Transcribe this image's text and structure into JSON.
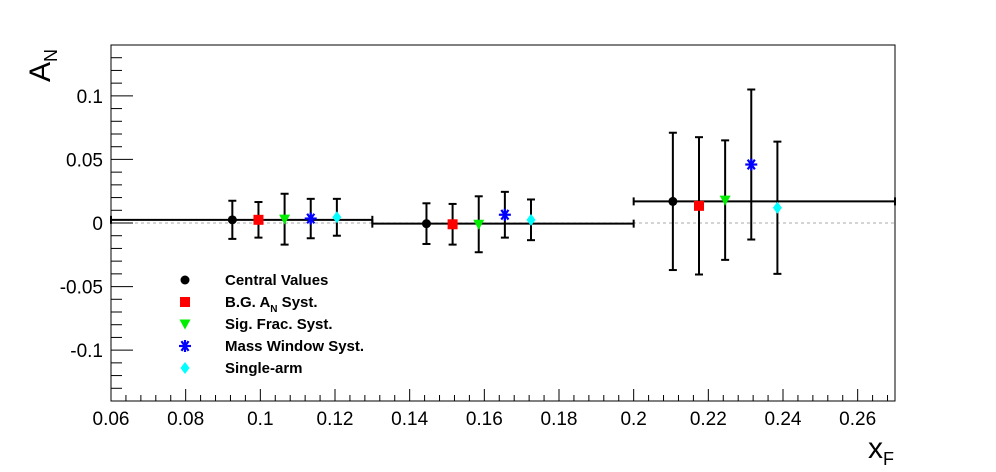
{
  "chart_data": {
    "type": "scatter",
    "xlabel": "x",
    "xlabel_sub": "F",
    "ylabel": "A",
    "ylabel_sub": "N",
    "xlim": [
      0.06,
      0.27
    ],
    "ylim": [
      -0.14,
      0.14
    ],
    "x_ticks": [
      0.06,
      0.08,
      0.1,
      0.12,
      0.14,
      0.16,
      0.18,
      0.2,
      0.22,
      0.24,
      0.26
    ],
    "x_tick_labels": [
      "0.06",
      "0.08",
      "0.1",
      "0.12",
      "0.14",
      "0.16",
      "0.18",
      "0.2",
      "0.22",
      "0.24",
      "0.26"
    ],
    "y_ticks": [
      -0.1,
      -0.05,
      0,
      0.05,
      0.1
    ],
    "y_tick_labels": [
      "-0.1",
      "-0.05",
      "0",
      "0.05",
      "0.1"
    ],
    "zero_line": true,
    "legend_position": "bottom-left",
    "series": [
      {
        "name": "Central Values",
        "legend_label": "Central Values",
        "marker": "circle",
        "color": "#000000",
        "points": [
          {
            "x": 0.0925,
            "y": 0.0025,
            "yerr": 0.015
          },
          {
            "x": 0.1445,
            "y": -0.0005,
            "yerr": 0.016
          },
          {
            "x": 0.2105,
            "y": 0.017,
            "yerr": 0.054
          }
        ]
      },
      {
        "name": "B.G. A_N Syst.",
        "legend_label": "B.G. A",
        "legend_label_sub": "N",
        "legend_label_suffix": " Syst.",
        "marker": "square",
        "color": "#ff0000",
        "points": [
          {
            "x": 0.0995,
            "y": 0.0025,
            "yerr": 0.014
          },
          {
            "x": 0.1515,
            "y": -0.001,
            "yerr": 0.016
          },
          {
            "x": 0.2175,
            "y": 0.0135,
            "yerr": 0.054
          }
        ]
      },
      {
        "name": "Sig. Frac. Syst.",
        "legend_label": "Sig. Frac. Syst.",
        "marker": "triangle-down",
        "color": "#00ee00",
        "points": [
          {
            "x": 0.1065,
            "y": 0.003,
            "yerr": 0.02
          },
          {
            "x": 0.1585,
            "y": -0.001,
            "yerr": 0.022
          },
          {
            "x": 0.2245,
            "y": 0.018,
            "yerr": 0.047
          }
        ]
      },
      {
        "name": "Mass Window Syst.",
        "legend_label": "Mass Window Syst.",
        "marker": "star",
        "color": "#0000ff",
        "points": [
          {
            "x": 0.1135,
            "y": 0.0035,
            "yerr": 0.0155
          },
          {
            "x": 0.1655,
            "y": 0.0065,
            "yerr": 0.018
          },
          {
            "x": 0.2315,
            "y": 0.046,
            "yerr": 0.059
          }
        ]
      },
      {
        "name": "Single-arm",
        "legend_label": "Single-arm",
        "marker": "diamond",
        "color": "#00ffff",
        "points": [
          {
            "x": 0.1205,
            "y": 0.0045,
            "yerr": 0.0145
          },
          {
            "x": 0.1725,
            "y": 0.0025,
            "yerr": 0.016
          },
          {
            "x": 0.2385,
            "y": 0.012,
            "yerr": 0.052
          }
        ]
      }
    ],
    "central_bin_widths": [
      {
        "xmin": 0.06,
        "xmax": 0.13
      },
      {
        "xmin": 0.13,
        "xmax": 0.2
      },
      {
        "xmin": 0.2,
        "xmax": 0.27
      }
    ]
  }
}
